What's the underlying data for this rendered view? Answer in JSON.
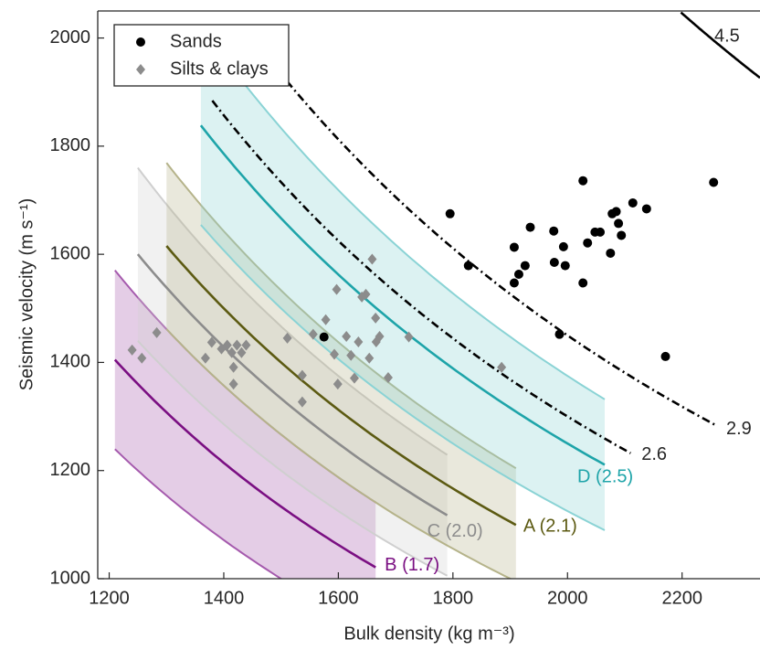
{
  "chart_data": {
    "type": "scatter",
    "x_label": "Bulk density (kg m⁻³)",
    "y_label": "Seismic velocity (m s⁻¹)",
    "xlim": [
      1180,
      2336
    ],
    "ylim": [
      1000,
      2050
    ],
    "xticks": [
      1200,
      1400,
      1600,
      1800,
      2000,
      2200
    ],
    "yticks": [
      1000,
      1200,
      1400,
      1600,
      1800,
      2000
    ],
    "curves": [
      {
        "label": "B (1.7)",
        "impedance": 1.7,
        "xrange": [
          1210,
          1665
        ],
        "band": 0.2,
        "color": "#7a0f82",
        "band_color": "#a55aad"
      },
      {
        "label": "C (2.0)",
        "impedance": 2.0,
        "xrange": [
          1250,
          1790
        ],
        "band": 0.2,
        "color": "#8c8c8c",
        "band_color": "#cfcfcf"
      },
      {
        "label": "A (2.1)",
        "impedance": 2.1,
        "xrange": [
          1300,
          1910
        ],
        "band": 0.2,
        "color": "#5c5a12",
        "band_color": "#b5b38a"
      },
      {
        "label": "D (2.5)",
        "impedance": 2.5,
        "xrange": [
          1360,
          2065
        ],
        "band": 0.25,
        "color": "#1ea4a9",
        "band_color": "#8ad3d5"
      },
      {
        "impedance": 2.6,
        "xrange": [
          1380,
          2110
        ],
        "color": "#000000",
        "style": "dashdot"
      },
      {
        "impedance": 2.9,
        "xrange": [
          1510,
          2261
        ],
        "color": "#000000",
        "style": "dashdot"
      },
      {
        "impedance": 4.5,
        "xrange": [
          2198,
          2336
        ],
        "color": "#000000",
        "style": "solid"
      }
    ],
    "series": [
      {
        "name": "Sands",
        "color": "#000000",
        "marker": "circle",
        "x": [
          1795,
          1827,
          1575,
          1907,
          1907,
          1915,
          1926,
          1935,
          1976,
          1977,
          1993,
          1996,
          1986,
          2027,
          2027,
          2035,
          2048,
          2057,
          2075,
          2078,
          2085,
          2089,
          2094,
          2114,
          2138,
          2255,
          2171
        ],
        "values": [
          1675,
          1579,
          1447,
          1613,
          1547,
          1563,
          1579,
          1650,
          1643,
          1585,
          1614,
          1579,
          1452,
          1736,
          1547,
          1621,
          1641,
          1641,
          1602,
          1675,
          1679,
          1657,
          1635,
          1695,
          1684,
          1733,
          1411
        ]
      },
      {
        "name": "Silts & clays",
        "color": "#8c8c8c",
        "marker": "diamond",
        "x": [
          1240,
          1257,
          1283,
          1368,
          1379,
          1396,
          1406,
          1414,
          1417,
          1423,
          1431,
          1417,
          1439,
          1511,
          1537,
          1537,
          1556,
          1578,
          1597,
          1593,
          1599,
          1614,
          1622,
          1628,
          1635,
          1641,
          1648,
          1654,
          1659,
          1665,
          1666,
          1672,
          1687,
          1723,
          1885
        ],
        "values": [
          1423,
          1408,
          1455,
          1408,
          1437,
          1425,
          1432,
          1418,
          1391,
          1432,
          1418,
          1360,
          1432,
          1445,
          1376,
          1327,
          1452,
          1479,
          1535,
          1415,
          1360,
          1448,
          1413,
          1371,
          1438,
          1521,
          1526,
          1408,
          1591,
          1482,
          1438,
          1448,
          1372,
          1447,
          1391
        ]
      }
    ]
  }
}
